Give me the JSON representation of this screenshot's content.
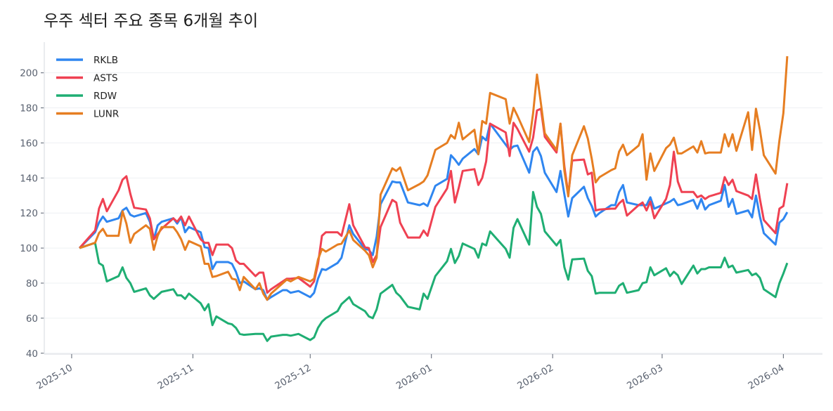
{
  "chart_data": {
    "type": "line",
    "title": "우주 섹터 주요 종목 6개월 추이",
    "xlabel": "",
    "ylabel": "",
    "ylim": [
      39.5,
      217.5
    ],
    "xlim": [
      "2025-09-24",
      "2026-04-11"
    ],
    "yticks": [
      40,
      60,
      80,
      100,
      120,
      140,
      160,
      180,
      200
    ],
    "xticks": [
      "2025-10",
      "2025-11",
      "2025-12",
      "2026-01",
      "2026-02",
      "2026-03",
      "2026-04"
    ],
    "grid": "horizontal",
    "legend_position": "top-left",
    "x": [
      "2025-10-03",
      "2025-10-07",
      "2025-10-08",
      "2025-10-09",
      "2025-10-10",
      "2025-10-13",
      "2025-10-14",
      "2025-10-15",
      "2025-10-16",
      "2025-10-17",
      "2025-10-20",
      "2025-10-21",
      "2025-10-22",
      "2025-10-23",
      "2025-10-24",
      "2025-10-27",
      "2025-10-28",
      "2025-10-29",
      "2025-10-30",
      "2025-10-31",
      "2025-11-03",
      "2025-11-04",
      "2025-11-05",
      "2025-11-06",
      "2025-11-07",
      "2025-11-10",
      "2025-11-11",
      "2025-11-12",
      "2025-11-13",
      "2025-11-14",
      "2025-11-17",
      "2025-11-18",
      "2025-11-19",
      "2025-11-20",
      "2025-11-21",
      "2025-11-24",
      "2025-11-25",
      "2025-11-26",
      "2025-11-28",
      "2025-12-01",
      "2025-12-02",
      "2025-12-03",
      "2025-12-04",
      "2025-12-05",
      "2025-12-08",
      "2025-12-09",
      "2025-12-11",
      "2025-12-12",
      "2025-12-15",
      "2025-12-16",
      "2025-12-17",
      "2025-12-18",
      "2025-12-19",
      "2025-12-22",
      "2025-12-23",
      "2025-12-24",
      "2025-12-26",
      "2025-12-29",
      "2025-12-30",
      "2025-12-31",
      "2026-01-02",
      "2026-01-05",
      "2026-01-06",
      "2026-01-07",
      "2026-01-08",
      "2026-01-09",
      "2026-01-12",
      "2026-01-13",
      "2026-01-14",
      "2026-01-15",
      "2026-01-16",
      "2026-01-20",
      "2026-01-21",
      "2026-01-22",
      "2026-01-23",
      "2026-01-26",
      "2026-01-27",
      "2026-01-28",
      "2026-01-29",
      "2026-01-30",
      "2026-02-02",
      "2026-02-03",
      "2026-02-04",
      "2026-02-05",
      "2026-02-06",
      "2026-02-09",
      "2026-02-10",
      "2026-02-11",
      "2026-02-12",
      "2026-02-13",
      "2026-02-16",
      "2026-02-17",
      "2026-02-18",
      "2026-02-19",
      "2026-02-20",
      "2026-02-23",
      "2026-02-24",
      "2026-02-25",
      "2026-02-26",
      "2026-02-27",
      "2026-03-02",
      "2026-03-03",
      "2026-03-04",
      "2026-03-05",
      "2026-03-06",
      "2026-03-09",
      "2026-03-10",
      "2026-03-11",
      "2026-03-12",
      "2026-03-13",
      "2026-03-16",
      "2026-03-17",
      "2026-03-18",
      "2026-03-19",
      "2026-03-20",
      "2026-03-23",
      "2026-03-24",
      "2026-03-25",
      "2026-03-26",
      "2026-03-27",
      "2026-03-30",
      "2026-03-31",
      "2026-04-01",
      "2026-04-02"
    ],
    "series": [
      {
        "name": "RKLB",
        "color": "#2f86f0",
        "values": [
          100,
          109,
          114.6,
          118,
          115,
          117,
          121.5,
          123,
          119,
          118,
          120,
          115,
          105,
          113,
          115,
          117,
          114,
          117.5,
          109,
          112,
          109,
          100.5,
          100,
          88,
          92,
          92,
          91,
          86.5,
          80,
          81,
          76.5,
          77,
          76,
          70.5,
          72,
          76,
          76,
          74.5,
          75.5,
          72,
          74.5,
          82.5,
          88,
          87.5,
          91.5,
          94.5,
          113,
          108,
          99.5,
          99,
          96,
          106.5,
          125,
          138,
          137.5,
          137.5,
          126,
          124.5,
          125.5,
          124,
          135.5,
          139.5,
          153,
          150.5,
          147.5,
          151,
          156.5,
          153.5,
          163.5,
          161.5,
          171,
          159,
          156,
          158,
          158.5,
          143,
          155,
          157.5,
          152.5,
          143,
          132,
          144,
          130.5,
          118,
          128.5,
          135,
          128.5,
          124,
          118,
          120,
          124.5,
          124.5,
          132,
          136,
          126,
          124.5,
          124.5,
          124.5,
          129,
          122.5,
          125.5,
          126.5,
          128,
          124.5,
          125,
          127.5,
          122.5,
          128,
          122,
          124.5,
          127,
          136,
          123.5,
          128,
          119.5,
          121.5,
          117.5,
          130,
          118,
          108.5,
          102,
          114.5,
          116.5,
          120.5
        ]
      },
      {
        "name": "ASTS",
        "color": "#ef4152",
        "values": [
          100,
          110,
          122.6,
          128,
          121,
          133,
          139,
          141,
          131,
          123,
          122,
          117,
          105,
          108,
          111,
          117,
          115,
          118,
          113,
          118,
          105,
          103,
          103,
          96,
          102,
          102,
          100,
          93,
          91,
          91,
          84,
          86,
          86,
          74.5,
          76.5,
          81,
          82.5,
          82.5,
          83,
          78,
          81,
          91,
          107,
          109,
          109,
          107,
          125,
          113,
          100.5,
          100,
          92,
          96,
          112,
          127.5,
          126,
          114.5,
          106,
          106,
          110,
          107,
          123.5,
          134,
          144,
          126,
          134.5,
          144,
          145,
          136,
          140,
          149.5,
          171,
          166,
          152.5,
          171.5,
          168,
          155,
          163,
          178.5,
          179.5,
          163.5,
          154.5,
          171,
          146.5,
          130.5,
          150,
          150.5,
          142,
          143,
          121.5,
          122,
          122.5,
          122.5,
          125.5,
          127.5,
          118.5,
          124.5,
          126,
          121.5,
          126.5,
          117,
          128,
          136,
          155,
          138,
          132,
          132,
          129,
          130,
          128,
          129.5,
          131.5,
          140.5,
          136,
          139,
          132.5,
          130,
          128,
          142,
          128,
          116,
          108.5,
          122.5,
          124,
          137
        ]
      },
      {
        "name": "RDW",
        "color": "#1fae73",
        "values": [
          100,
          103,
          91.4,
          90,
          81,
          84,
          89,
          83,
          80,
          75,
          77,
          73,
          71,
          73,
          75,
          76.5,
          73,
          73,
          71,
          74,
          68.5,
          64.5,
          68,
          56,
          61,
          57,
          56.5,
          54.5,
          51,
          50.5,
          51,
          51,
          51,
          47,
          49.5,
          50.5,
          50.5,
          50,
          51,
          47.5,
          49,
          54.5,
          58,
          60,
          64,
          68,
          72,
          68,
          64,
          61,
          60,
          65,
          74,
          79,
          74.5,
          72.5,
          66.5,
          65,
          74,
          71,
          84,
          92.5,
          99.5,
          91.5,
          95.5,
          102.6,
          99.5,
          94.5,
          102.6,
          101.5,
          109.5,
          99.5,
          94.5,
          111.5,
          116.5,
          102,
          132,
          123.5,
          119.5,
          109.5,
          101.5,
          104.6,
          89,
          82,
          93.5,
          94,
          87,
          84,
          74,
          74.5,
          74.5,
          74.5,
          78.5,
          80,
          74.5,
          76,
          80,
          80.5,
          89,
          84.5,
          88.5,
          84,
          86.5,
          84.5,
          79.5,
          90,
          85.5,
          88,
          88,
          89,
          89,
          94.5,
          89,
          90,
          86,
          87.5,
          84.5,
          85.5,
          83,
          76.5,
          72,
          80,
          85.5,
          91.5
        ]
      },
      {
        "name": "LUNR",
        "color": "#e67e22",
        "values": [
          100,
          103,
          108.6,
          111,
          107,
          107,
          121,
          114,
          103,
          108,
          113,
          111,
          99,
          107,
          112,
          112,
          109,
          105,
          99,
          104,
          101,
          91,
          91,
          83.5,
          84,
          86.5,
          82.5,
          82,
          76,
          83.5,
          76.5,
          80,
          74,
          70.5,
          74,
          80,
          82,
          81,
          83.5,
          81,
          82.5,
          93.5,
          99.5,
          98,
          102,
          102.5,
          110,
          104.6,
          98.5,
          96,
          89,
          94.5,
          130.5,
          145.5,
          144,
          146,
          133,
          136.5,
          138,
          141.5,
          156,
          160,
          164.5,
          162.5,
          171.5,
          162,
          167.5,
          153.5,
          172.5,
          171,
          188.5,
          185,
          171,
          180,
          175.5,
          160.5,
          177,
          199,
          182.5,
          165.5,
          156,
          171,
          144,
          129.5,
          153,
          169.5,
          162.5,
          151,
          137.5,
          140.5,
          144.5,
          145.5,
          155,
          159,
          153,
          158.5,
          165,
          139,
          154,
          144,
          157,
          159,
          163,
          154,
          154,
          158,
          154.5,
          161,
          154,
          154.5,
          154.5,
          165,
          158,
          165,
          155.5,
          177.5,
          156,
          179.5,
          167.5,
          153,
          142.5,
          161.5,
          177,
          209.5
        ]
      }
    ]
  }
}
